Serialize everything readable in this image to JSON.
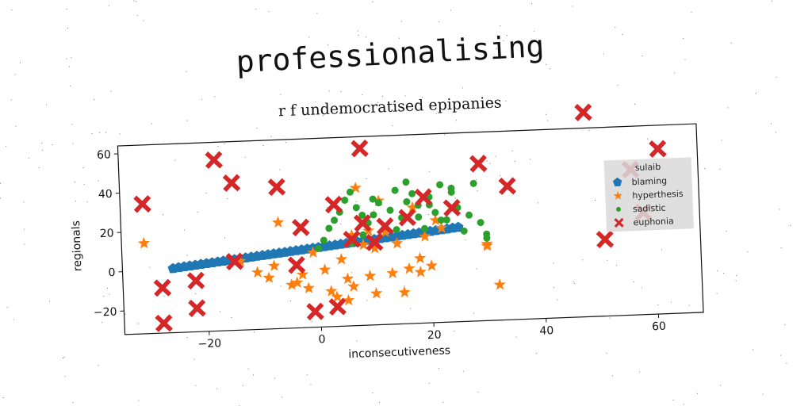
{
  "page_title": "professionalising",
  "chart_data": {
    "type": "scatter",
    "title": "r f undemocratised epipanies",
    "xlabel": "inconsecutiveness",
    "ylabel": "regionals",
    "xlim": [
      -35,
      68
    ],
    "ylim": [
      -32,
      64
    ],
    "xticks": [
      -20,
      0,
      20,
      40,
      60
    ],
    "yticks": [
      -20,
      0,
      20,
      40,
      60
    ],
    "legend_title": "sulaib",
    "legend_position": "right",
    "grid": false,
    "series": [
      {
        "name": "blaming",
        "marker": "pentagon",
        "color": "#1f77b4",
        "x": [
          -26,
          -25,
          -24,
          -23,
          -22,
          -21,
          -20,
          -19,
          -18,
          -17,
          -16,
          -15,
          -14,
          -13,
          -12,
          -11,
          -10,
          -9,
          -8,
          -7,
          -6,
          -5,
          -4,
          -3,
          -2,
          -1,
          0,
          1,
          2,
          3,
          4,
          5,
          6,
          7,
          8,
          9,
          10,
          11,
          12,
          13,
          14,
          15,
          16,
          17,
          18,
          19,
          20,
          21,
          22,
          23,
          24,
          25
        ],
        "y": [
          0.6,
          1.0,
          1.3,
          1.6,
          1.9,
          2.2,
          2.5,
          2.8,
          3.1,
          3.4,
          3.7,
          4.0,
          4.3,
          4.6,
          4.9,
          5.2,
          5.5,
          5.8,
          6.1,
          6.4,
          6.7,
          7.0,
          7.3,
          7.6,
          7.9,
          8.2,
          8.5,
          8.8,
          9.1,
          9.4,
          9.7,
          10.0,
          10.3,
          10.6,
          10.9,
          11.2,
          11.5,
          11.8,
          12.1,
          12.4,
          12.7,
          13.0,
          13.3,
          13.6,
          13.9,
          14.2,
          14.5,
          14.8,
          15.1,
          15.4,
          15.7,
          16.0
        ]
      },
      {
        "name": "hyperthesis",
        "marker": "star",
        "color": "#ff7f0e",
        "x": [
          -31,
          -14,
          -11,
          -9,
          -8,
          -7,
          -5,
          -4,
          -3,
          -2,
          -1,
          1,
          2,
          3,
          4,
          5,
          5,
          6,
          6,
          7,
          8,
          9,
          9,
          10,
          10,
          11,
          12,
          13,
          14,
          15,
          16,
          17,
          18,
          18,
          19,
          20,
          21,
          22,
          30,
          30,
          32
        ],
        "y": [
          14,
          3,
          -3,
          -6,
          0,
          22,
          -10,
          -9,
          -5,
          -12,
          6,
          -3,
          -14,
          -17,
          2,
          -8,
          -19,
          14,
          -12,
          38,
          9,
          -7,
          16,
          -16,
          7,
          31,
          15,
          -6,
          9,
          -16,
          -4,
          27,
          -6,
          1,
          12,
          -3,
          20,
          16,
          6,
          7,
          -14
        ],
        "note": "approximate positions"
      },
      {
        "name": "sadistic",
        "marker": "circle",
        "color": "#2ca02c",
        "x": [
          0,
          1,
          2,
          3,
          4,
          5,
          6,
          6,
          7,
          8,
          9,
          10,
          11,
          12,
          13,
          14,
          15,
          16,
          17,
          18,
          19,
          20,
          21,
          22,
          23,
          24,
          25,
          26,
          27,
          28,
          29,
          30,
          30,
          14,
          16,
          18,
          20,
          22,
          24,
          8,
          10
        ],
        "y": [
          8,
          12,
          18,
          22,
          26,
          32,
          10,
          36,
          28,
          14,
          20,
          24,
          30,
          18,
          26,
          36,
          22,
          30,
          34,
          28,
          16,
          32,
          24,
          38,
          20,
          34,
          26,
          14,
          22,
          38,
          18,
          12,
          10,
          16,
          40,
          22,
          28,
          20,
          36,
          24,
          32
        ],
        "note": "approximate positions"
      },
      {
        "name": "euphonia",
        "marker": "x",
        "color": "#d62728",
        "x": [
          -31,
          -28,
          -28,
          -22,
          -22,
          -18,
          -15,
          -15,
          -7,
          -4,
          -3,
          -1,
          3,
          3,
          6,
          8,
          8,
          10,
          12,
          16,
          19,
          24,
          29,
          34,
          48,
          51,
          56,
          58,
          61
        ],
        "y": [
          34,
          -9,
          -27,
          -6,
          -20,
          55,
          43,
          3,
          40,
          0,
          19,
          -24,
          30,
          -22,
          12,
          58,
          20,
          10,
          18,
          22,
          32,
          26,
          48,
          36,
          72,
          7,
          42,
          20,
          52
        ],
        "note": "approximate positions"
      }
    ]
  }
}
